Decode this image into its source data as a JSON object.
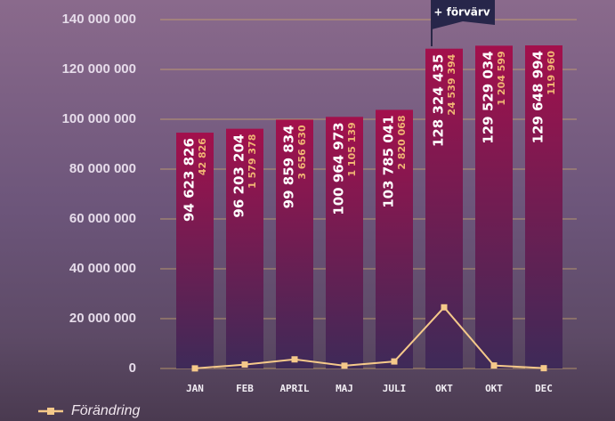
{
  "chart_data": {
    "type": "bar",
    "annotation": "+ förvärv",
    "categories": [
      "JAN",
      "FEB",
      "APRIL",
      "MAJ",
      "JULI",
      "OKT",
      "OKT",
      "DEC"
    ],
    "series": [
      {
        "type": "bar",
        "color": "#a3104c",
        "values": [
          94623826,
          96203204,
          99859834,
          100964973,
          103785041,
          128324435,
          129529034,
          129648994
        ],
        "value_labels": [
          "94 623 826",
          "96 203 204",
          "99 859 834",
          "100 964 973",
          "103 785 041",
          "128 324 435",
          "129 529 034",
          "129 648 994"
        ]
      },
      {
        "type": "line",
        "name": "Förändring",
        "color": "#f5c98a",
        "values": [
          42826,
          1579378,
          3656630,
          1105139,
          2820068,
          24539394,
          1204599,
          119960
        ],
        "value_labels": [
          "42 826",
          "1 579 378",
          "3 656 630",
          "1 105 139",
          "2 820 068",
          "24 539 394",
          "1 204 599",
          "119 960"
        ]
      }
    ],
    "ylim": [
      0,
      140000000
    ],
    "yticks": [
      0,
      {
        "value": 20000000,
        "label": "20 000 000"
      },
      {
        "value": 40000000,
        "label": "40 000 000"
      },
      {
        "value": 60000000,
        "label": "60 000 000"
      },
      {
        "value": 80000000,
        "label": "80 000 000"
      },
      {
        "value": 100000000,
        "label": "100 000 000"
      },
      {
        "value": 120000000,
        "label": "120 000 000"
      },
      {
        "value": 140000000,
        "label": "140 000 000"
      }
    ],
    "grid": true,
    "grid_color": "#c9a66b",
    "legend": "bottom-left"
  }
}
